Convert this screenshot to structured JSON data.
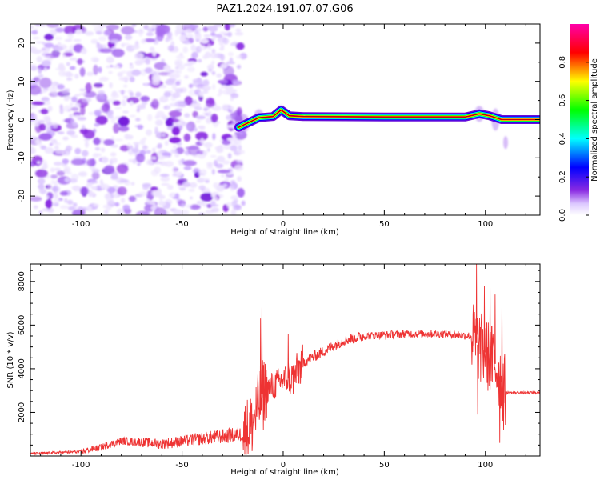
{
  "title": "PAZ1.2024.191.07.07.G06",
  "colors": {
    "snr_line": "#ee3333",
    "colormap": [
      "#ffffff",
      "#dcc8ff",
      "#8a2be2",
      "#0000ff",
      "#00ffff",
      "#00ff00",
      "#ffff00",
      "#ff0000",
      "#ff00aa"
    ]
  },
  "chart_data": [
    {
      "type": "heatmap",
      "xlabel": "Height of straight line (km)",
      "ylabel": "Frequency (Hz)",
      "xlim": [
        -125,
        127
      ],
      "ylim": [
        -25,
        25
      ],
      "x_ticks": [
        -100,
        -50,
        0,
        50,
        100
      ],
      "y_ticks": [
        -20,
        -10,
        0,
        10,
        20
      ],
      "x_tick_labels": [
        "-100",
        "-50",
        "0",
        "50",
        "100"
      ],
      "y_tick_labels": [
        "-20",
        "-10",
        "0",
        "10",
        "20"
      ],
      "noise_region_x": [
        -125,
        -22
      ],
      "signal_ridge": [
        {
          "x": -22,
          "y": -2
        },
        {
          "x": -18,
          "y": -1
        },
        {
          "x": -12,
          "y": 0.5
        },
        {
          "x": -5,
          "y": 0.8
        },
        {
          "x": -1,
          "y": 2.5
        },
        {
          "x": 3,
          "y": 1
        },
        {
          "x": 10,
          "y": 0.8
        },
        {
          "x": 50,
          "y": 0.7
        },
        {
          "x": 90,
          "y": 0.7
        },
        {
          "x": 97,
          "y": 1.5
        },
        {
          "x": 102,
          "y": 1
        },
        {
          "x": 108,
          "y": 0
        },
        {
          "x": 115,
          "y": 0
        },
        {
          "x": 127,
          "y": 0
        }
      ],
      "colorbar": {
        "label": "Normalized spectral amplitude",
        "range": [
          0,
          1
        ],
        "ticks": [
          0.0,
          0.2,
          0.4,
          0.6,
          0.8
        ],
        "tick_labels": [
          "0.0",
          "0.2",
          "0.4",
          "0.6",
          "0.8"
        ]
      }
    },
    {
      "type": "line",
      "xlabel": "Height of straight line (km)",
      "ylabel": "SNR (10 * v/v)",
      "xlim": [
        -125,
        127
      ],
      "ylim": [
        0,
        8800
      ],
      "x_ticks": [
        -100,
        -50,
        0,
        50,
        100
      ],
      "y_ticks": [
        2000,
        4000,
        6000,
        8000
      ],
      "x_tick_labels": [
        "-100",
        "-50",
        "0",
        "50",
        "100"
      ],
      "y_tick_labels": [
        "2000",
        "4000",
        "6000",
        "8000"
      ],
      "trend": [
        {
          "x": -125,
          "y": 100
        },
        {
          "x": -100,
          "y": 200
        },
        {
          "x": -90,
          "y": 400
        },
        {
          "x": -80,
          "y": 700
        },
        {
          "x": -60,
          "y": 550
        },
        {
          "x": -40,
          "y": 800
        },
        {
          "x": -20,
          "y": 1000
        },
        {
          "x": -15,
          "y": 1500
        },
        {
          "x": -10,
          "y": 3000
        },
        {
          "x": -5,
          "y": 3200
        },
        {
          "x": 0,
          "y": 3500
        },
        {
          "x": 5,
          "y": 3600
        },
        {
          "x": 10,
          "y": 4300
        },
        {
          "x": 20,
          "y": 4800
        },
        {
          "x": 30,
          "y": 5300
        },
        {
          "x": 40,
          "y": 5500
        },
        {
          "x": 60,
          "y": 5600
        },
        {
          "x": 80,
          "y": 5600
        },
        {
          "x": 93,
          "y": 5500
        },
        {
          "x": 97,
          "y": 5000
        },
        {
          "x": 105,
          "y": 4200
        },
        {
          "x": 110,
          "y": 2900
        },
        {
          "x": 127,
          "y": 2900
        }
      ]
    }
  ]
}
